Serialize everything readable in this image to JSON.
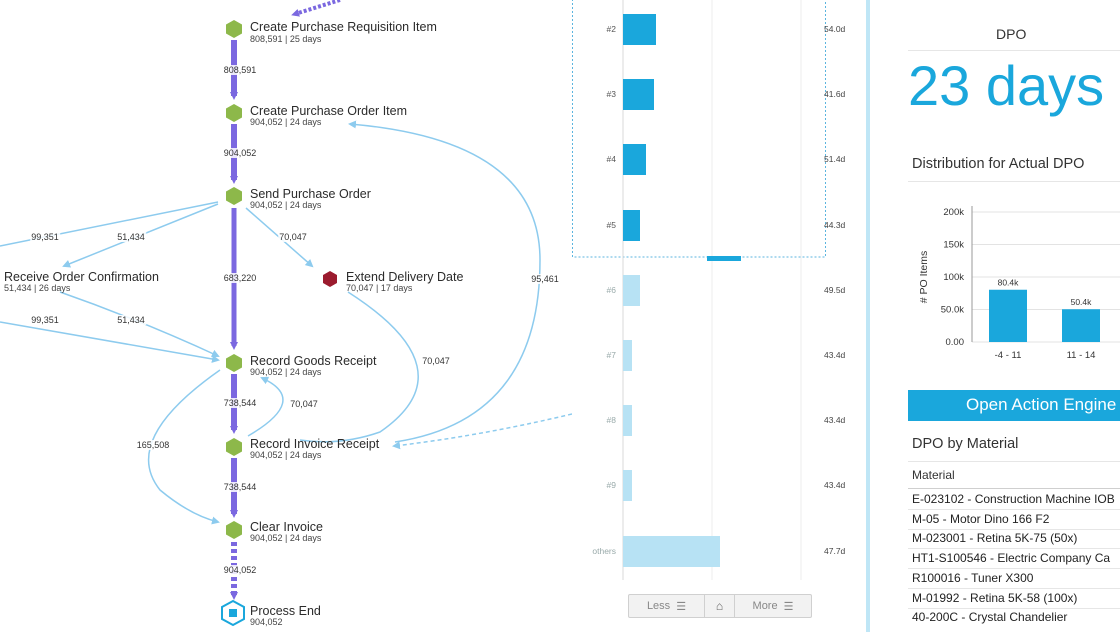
{
  "process_map": {
    "nodes": [
      {
        "name": "Create Purchase Requisition Item",
        "stats": "808,591 | 25 days"
      },
      {
        "name": "Create Purchase Order Item",
        "stats": "904,052 | 24 days"
      },
      {
        "name": "Send Purchase Order",
        "stats": "904,052 | 24 days"
      },
      {
        "name": "Receive Order Confirmation",
        "stats": "51,434 | 26 days"
      },
      {
        "name": "Extend Delivery Date",
        "stats": "70,047 | 17 days"
      },
      {
        "name": "Record Goods Receipt",
        "stats": "904,052 | 24 days"
      },
      {
        "name": "Record Invoice Receipt",
        "stats": "904,052 | 24 days"
      },
      {
        "name": "Clear Invoice",
        "stats": "904,052 | 24 days"
      },
      {
        "name": "Process End",
        "stats": "904,052"
      }
    ],
    "edge_labels": [
      "808,591",
      "904,052",
      "683,220",
      "738,544",
      "738,544",
      "904,052",
      "99,351",
      "51,434",
      "99,351",
      "51,434",
      "70,047",
      "70,047",
      "70,047",
      "95,461",
      "165,508"
    ],
    "colors": {
      "activity": "#8db84a",
      "end_activity": "#9b1b2e",
      "main_flow": "#7b68e0",
      "side_flow": "#8dcbee"
    }
  },
  "bar_chart": {
    "rows": [
      {
        "rank": "#2",
        "value": "54.0d",
        "dpo": 54.0,
        "highlighted": true
      },
      {
        "rank": "#3",
        "value": "41.6d",
        "dpo": 41.6,
        "highlighted": true
      },
      {
        "rank": "#4",
        "value": "51.4d",
        "dpo": 51.4,
        "highlighted": true
      },
      {
        "rank": "#5",
        "value": "44.3d",
        "dpo": 44.3,
        "highlighted": true
      },
      {
        "rank": "#6",
        "value": "49.5d",
        "dpo": 49.5,
        "highlighted": false
      },
      {
        "rank": "#7",
        "value": "43.4d",
        "dpo": 43.4,
        "highlighted": false
      },
      {
        "rank": "#8",
        "value": "43.4d",
        "dpo": 43.4,
        "highlighted": false
      },
      {
        "rank": "#9",
        "value": "43.4d",
        "dpo": 43.4,
        "highlighted": false
      },
      {
        "rank": "others",
        "value": "47.7d",
        "dpo": 47.7,
        "highlighted": false
      }
    ],
    "pager": {
      "less": "Less",
      "more": "More"
    },
    "colors": {
      "bar": "#1aa7dc",
      "bar_faded": "#b7e2f4"
    }
  },
  "kpi": {
    "title": "DPO",
    "value": "23 days",
    "distribution_title": "Distribution for Actual DPO",
    "action_button": "Open Action Engine",
    "material_section_title": "DPO by Material",
    "material_column_header": "Material",
    "materials": [
      "E-023102 - Construction Machine IOB",
      "M-05 - Motor Dino 166 F2",
      "M-023001 - Retina 5K-75 (50x)",
      "HT1-S100546 - Electric Company Ca",
      "R100016 - Tuner X300",
      "M-01992 - Retina 5K-58 (100x)",
      "40-200C - Crystal Chandelier"
    ],
    "accent_color": "#1aa7dc"
  },
  "chart_data": {
    "type": "bar",
    "ylabel": "# PO Items",
    "yticks": [
      "0.00",
      "50.0k",
      "100k",
      "150k",
      "200k"
    ],
    "ylim": [
      0,
      200000
    ],
    "categories": [
      "-4 - 11",
      "11 - 14"
    ],
    "values": [
      80400,
      50400
    ],
    "data_labels": [
      "80.4k",
      "50.4k"
    ],
    "grid": true
  }
}
